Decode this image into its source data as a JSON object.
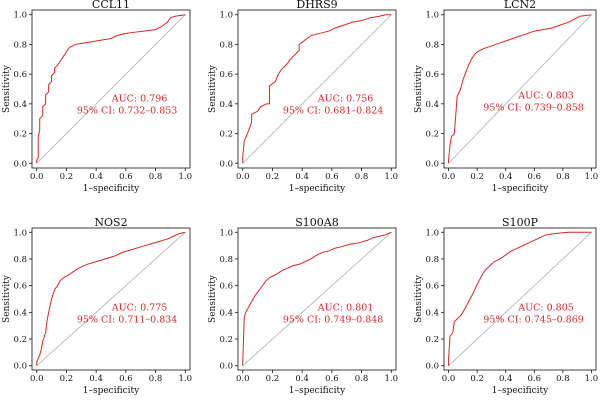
{
  "chart_data": [
    {
      "type": "line",
      "title": "CCL11",
      "xlabel": "1–specificity",
      "ylabel": "Sensitivity",
      "xlim": [
        0,
        1
      ],
      "ylim": [
        0,
        1
      ],
      "xticks": [
        "0.0",
        "0.2",
        "0.4",
        "0.6",
        "0.8",
        "1.0"
      ],
      "yticks": [
        "0.0",
        "0.2",
        "0.4",
        "0.6",
        "0.8",
        "1.0"
      ],
      "auc_text": "AUC: 0.796",
      "ci_text": "95% CI: 0.732–0.853",
      "roc": [
        [
          0,
          0
        ],
        [
          0,
          0.02
        ],
        [
          0.01,
          0.04
        ],
        [
          0.01,
          0.18
        ],
        [
          0.02,
          0.22
        ],
        [
          0.02,
          0.3
        ],
        [
          0.04,
          0.32
        ],
        [
          0.04,
          0.38
        ],
        [
          0.06,
          0.4
        ],
        [
          0.06,
          0.46
        ],
        [
          0.08,
          0.48
        ],
        [
          0.08,
          0.53
        ],
        [
          0.1,
          0.55
        ],
        [
          0.1,
          0.59
        ],
        [
          0.12,
          0.61
        ],
        [
          0.12,
          0.64
        ],
        [
          0.14,
          0.66
        ],
        [
          0.16,
          0.69
        ],
        [
          0.18,
          0.72
        ],
        [
          0.2,
          0.75
        ],
        [
          0.22,
          0.78
        ],
        [
          0.26,
          0.8
        ],
        [
          0.32,
          0.81
        ],
        [
          0.38,
          0.82
        ],
        [
          0.44,
          0.83
        ],
        [
          0.5,
          0.84
        ],
        [
          0.54,
          0.86
        ],
        [
          0.58,
          0.87
        ],
        [
          0.64,
          0.88
        ],
        [
          0.72,
          0.89
        ],
        [
          0.8,
          0.9
        ],
        [
          0.84,
          0.92
        ],
        [
          0.88,
          0.95
        ],
        [
          0.9,
          0.98
        ],
        [
          0.93,
          0.99
        ],
        [
          1,
          1
        ]
      ],
      "ref": [
        [
          0,
          0
        ],
        [
          1,
          1
        ]
      ]
    },
    {
      "type": "line",
      "title": "DHRS9",
      "xlabel": "1–specificity",
      "ylabel": "Sensitivity",
      "xlim": [
        0,
        1
      ],
      "ylim": [
        0,
        1
      ],
      "xticks": [
        "0.0",
        "0.2",
        "0.4",
        "0.6",
        "0.8",
        "1.0"
      ],
      "yticks": [
        "0.0",
        "0.2",
        "0.4",
        "0.6",
        "0.8",
        "1.0"
      ],
      "auc_text": "AUC: 0.756",
      "ci_text": "95% CI: 0.681–0.824",
      "roc": [
        [
          0,
          0
        ],
        [
          0,
          0.04
        ],
        [
          0.01,
          0.15
        ],
        [
          0.04,
          0.22
        ],
        [
          0.06,
          0.28
        ],
        [
          0.06,
          0.33
        ],
        [
          0.1,
          0.35
        ],
        [
          0.12,
          0.38
        ],
        [
          0.16,
          0.4
        ],
        [
          0.18,
          0.4
        ],
        [
          0.18,
          0.52
        ],
        [
          0.22,
          0.55
        ],
        [
          0.24,
          0.6
        ],
        [
          0.26,
          0.63
        ],
        [
          0.3,
          0.67
        ],
        [
          0.32,
          0.7
        ],
        [
          0.34,
          0.72
        ],
        [
          0.36,
          0.74
        ],
        [
          0.38,
          0.76
        ],
        [
          0.38,
          0.8
        ],
        [
          0.42,
          0.83
        ],
        [
          0.46,
          0.86
        ],
        [
          0.5,
          0.87
        ],
        [
          0.54,
          0.88
        ],
        [
          0.58,
          0.89
        ],
        [
          0.62,
          0.91
        ],
        [
          0.68,
          0.93
        ],
        [
          0.74,
          0.95
        ],
        [
          0.8,
          0.96
        ],
        [
          0.86,
          0.98
        ],
        [
          0.92,
          0.99
        ],
        [
          0.96,
          1.0
        ],
        [
          1,
          1
        ]
      ],
      "ref": [
        [
          0,
          0
        ],
        [
          1,
          1
        ]
      ]
    },
    {
      "type": "line",
      "title": "LCN2",
      "xlabel": "1–specificity",
      "ylabel": "Sensitivity",
      "xlim": [
        0,
        1
      ],
      "ylim": [
        0,
        1
      ],
      "xticks": [
        "0.0",
        "0.2",
        "0.4",
        "0.6",
        "0.8",
        "1.0"
      ],
      "yticks": [
        "0.0",
        "0.2",
        "0.4",
        "0.6",
        "0.8",
        "1.0"
      ],
      "auc_text": "AUC: 0.803",
      "ci_text": "95% CI: 0.739–0.858",
      "roc": [
        [
          0,
          0
        ],
        [
          0,
          0.02
        ],
        [
          0.01,
          0.12
        ],
        [
          0.02,
          0.18
        ],
        [
          0.04,
          0.2
        ],
        [
          0.05,
          0.32
        ],
        [
          0.06,
          0.45
        ],
        [
          0.08,
          0.49
        ],
        [
          0.09,
          0.52
        ],
        [
          0.1,
          0.56
        ],
        [
          0.12,
          0.61
        ],
        [
          0.14,
          0.66
        ],
        [
          0.16,
          0.7
        ],
        [
          0.18,
          0.73
        ],
        [
          0.2,
          0.75
        ],
        [
          0.24,
          0.77
        ],
        [
          0.3,
          0.79
        ],
        [
          0.36,
          0.81
        ],
        [
          0.42,
          0.83
        ],
        [
          0.48,
          0.85
        ],
        [
          0.54,
          0.87
        ],
        [
          0.6,
          0.89
        ],
        [
          0.66,
          0.9
        ],
        [
          0.72,
          0.91
        ],
        [
          0.78,
          0.93
        ],
        [
          0.84,
          0.95
        ],
        [
          0.88,
          0.97
        ],
        [
          0.92,
          0.99
        ],
        [
          1,
          1
        ]
      ],
      "ref": [
        [
          0,
          0
        ],
        [
          1,
          1
        ]
      ]
    },
    {
      "type": "line",
      "title": "NOS2",
      "xlabel": "1–specificity",
      "ylabel": "Sensitivity",
      "xlim": [
        0,
        1
      ],
      "ylim": [
        0,
        1
      ],
      "xticks": [
        "0.0",
        "0.2",
        "0.4",
        "0.6",
        "0.8",
        "1.0"
      ],
      "yticks": [
        "0.0",
        "0.2",
        "0.4",
        "0.6",
        "0.8",
        "1.0"
      ],
      "auc_text": "AUC: 0.775",
      "ci_text": "95% CI: 0.711–0.834",
      "roc": [
        [
          0,
          0
        ],
        [
          0,
          0.03
        ],
        [
          0.02,
          0.08
        ],
        [
          0.03,
          0.12
        ],
        [
          0.04,
          0.18
        ],
        [
          0.06,
          0.25
        ],
        [
          0.07,
          0.34
        ],
        [
          0.08,
          0.4
        ],
        [
          0.1,
          0.5
        ],
        [
          0.12,
          0.57
        ],
        [
          0.14,
          0.6
        ],
        [
          0.16,
          0.64
        ],
        [
          0.18,
          0.66
        ],
        [
          0.2,
          0.67
        ],
        [
          0.24,
          0.7
        ],
        [
          0.28,
          0.73
        ],
        [
          0.34,
          0.76
        ],
        [
          0.4,
          0.78
        ],
        [
          0.46,
          0.8
        ],
        [
          0.52,
          0.82
        ],
        [
          0.58,
          0.85
        ],
        [
          0.64,
          0.87
        ],
        [
          0.7,
          0.89
        ],
        [
          0.76,
          0.91
        ],
        [
          0.82,
          0.93
        ],
        [
          0.88,
          0.95
        ],
        [
          0.92,
          0.97
        ],
        [
          0.96,
          0.99
        ],
        [
          1,
          1
        ]
      ],
      "ref": [
        [
          0,
          0
        ],
        [
          1,
          1
        ]
      ]
    },
    {
      "type": "line",
      "title": "S100A8",
      "xlabel": "1–specificity",
      "ylabel": "Sensitivity",
      "xlim": [
        0,
        1
      ],
      "ylim": [
        0,
        1
      ],
      "xticks": [
        "0.0",
        "0.2",
        "0.4",
        "0.6",
        "0.8",
        "1.0"
      ],
      "yticks": [
        "0.0",
        "0.2",
        "0.4",
        "0.6",
        "0.8",
        "1.0"
      ],
      "auc_text": "AUC: 0.801",
      "ci_text": "95% CI: 0.749–0.848",
      "roc": [
        [
          0,
          0
        ],
        [
          0,
          0.03
        ],
        [
          0.01,
          0.36
        ],
        [
          0.02,
          0.4
        ],
        [
          0.04,
          0.44
        ],
        [
          0.06,
          0.48
        ],
        [
          0.08,
          0.52
        ],
        [
          0.1,
          0.55
        ],
        [
          0.12,
          0.58
        ],
        [
          0.14,
          0.61
        ],
        [
          0.16,
          0.64
        ],
        [
          0.18,
          0.66
        ],
        [
          0.22,
          0.68
        ],
        [
          0.26,
          0.71
        ],
        [
          0.3,
          0.73
        ],
        [
          0.34,
          0.75
        ],
        [
          0.38,
          0.76
        ],
        [
          0.42,
          0.78
        ],
        [
          0.46,
          0.8
        ],
        [
          0.5,
          0.83
        ],
        [
          0.54,
          0.85
        ],
        [
          0.58,
          0.86
        ],
        [
          0.62,
          0.88
        ],
        [
          0.66,
          0.89
        ],
        [
          0.72,
          0.91
        ],
        [
          0.78,
          0.92
        ],
        [
          0.84,
          0.94
        ],
        [
          0.88,
          0.96
        ],
        [
          0.92,
          0.97
        ],
        [
          0.96,
          0.98
        ],
        [
          1,
          1
        ]
      ],
      "ref": [
        [
          0,
          0
        ],
        [
          1,
          1
        ]
      ]
    },
    {
      "type": "line",
      "title": "S100P",
      "xlabel": "1–specificity",
      "ylabel": "Sensitivity",
      "xlim": [
        0,
        1
      ],
      "ylim": [
        0,
        1
      ],
      "xticks": [
        "0.0",
        "0.2",
        "0.4",
        "0.6",
        "0.8",
        "1.0"
      ],
      "yticks": [
        "0.0",
        "0.2",
        "0.4",
        "0.6",
        "0.8",
        "1.0"
      ],
      "auc_text": "AUC: 0.805",
      "ci_text": "95% CI: 0.745–0.869",
      "roc": [
        [
          0,
          0
        ],
        [
          0,
          0.05
        ],
        [
          0.01,
          0.22
        ],
        [
          0.03,
          0.25
        ],
        [
          0.04,
          0.33
        ],
        [
          0.06,
          0.35
        ],
        [
          0.08,
          0.37
        ],
        [
          0.1,
          0.4
        ],
        [
          0.12,
          0.44
        ],
        [
          0.14,
          0.48
        ],
        [
          0.16,
          0.52
        ],
        [
          0.18,
          0.56
        ],
        [
          0.2,
          0.61
        ],
        [
          0.22,
          0.65
        ],
        [
          0.24,
          0.69
        ],
        [
          0.26,
          0.72
        ],
        [
          0.28,
          0.74
        ],
        [
          0.3,
          0.76
        ],
        [
          0.32,
          0.78
        ],
        [
          0.36,
          0.8
        ],
        [
          0.4,
          0.83
        ],
        [
          0.44,
          0.86
        ],
        [
          0.48,
          0.88
        ],
        [
          0.52,
          0.9
        ],
        [
          0.56,
          0.92
        ],
        [
          0.6,
          0.94
        ],
        [
          0.64,
          0.96
        ],
        [
          0.68,
          0.98
        ],
        [
          0.74,
          0.99
        ],
        [
          0.84,
          1.0
        ],
        [
          1,
          1
        ]
      ],
      "ref": [
        [
          0,
          0
        ],
        [
          1,
          1
        ]
      ]
    }
  ],
  "colors": {
    "roc_line": "#d62728",
    "ref_line": "#b8b8b8",
    "axis": "#111111",
    "annotation": "#d62728"
  }
}
